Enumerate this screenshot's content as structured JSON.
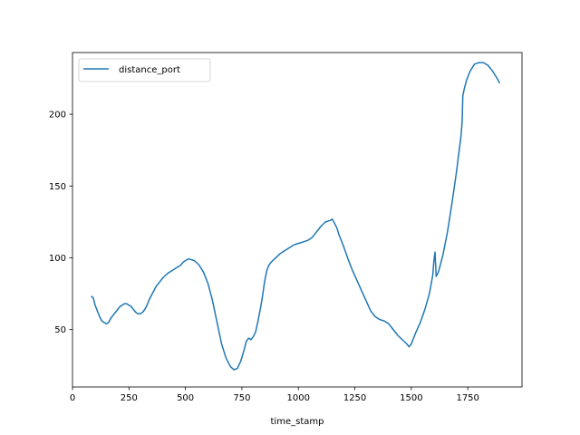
{
  "chart_data": {
    "type": "line",
    "title": "",
    "xlabel": "time_stamp",
    "ylabel": "",
    "xlim": [
      0,
      1990
    ],
    "ylim": [
      10,
      243
    ],
    "xticks": [
      0,
      250,
      500,
      750,
      1000,
      1250,
      1500,
      1750
    ],
    "yticks": [
      50,
      100,
      150,
      200
    ],
    "grid": false,
    "legend_position": "top-left",
    "series": [
      {
        "name": "distance_port",
        "color": "#1f77b4",
        "points": [
          [
            85,
            73
          ],
          [
            92,
            72
          ],
          [
            100,
            67
          ],
          [
            110,
            63
          ],
          [
            120,
            59
          ],
          [
            130,
            56
          ],
          [
            140,
            55
          ],
          [
            150,
            54
          ],
          [
            160,
            55
          ],
          [
            170,
            58
          ],
          [
            180,
            60
          ],
          [
            190,
            62
          ],
          [
            200,
            64
          ],
          [
            210,
            66
          ],
          [
            220,
            67
          ],
          [
            230,
            68
          ],
          [
            240,
            68
          ],
          [
            250,
            67
          ],
          [
            260,
            66
          ],
          [
            270,
            64
          ],
          [
            280,
            62
          ],
          [
            290,
            61
          ],
          [
            300,
            61
          ],
          [
            310,
            62
          ],
          [
            320,
            64
          ],
          [
            330,
            67
          ],
          [
            340,
            71
          ],
          [
            350,
            74
          ],
          [
            360,
            77
          ],
          [
            370,
            80
          ],
          [
            380,
            82
          ],
          [
            390,
            84
          ],
          [
            400,
            86
          ],
          [
            420,
            89
          ],
          [
            440,
            91
          ],
          [
            460,
            93
          ],
          [
            480,
            95
          ],
          [
            490,
            97
          ],
          [
            500,
            98
          ],
          [
            510,
            99
          ],
          [
            520,
            99
          ],
          [
            540,
            98
          ],
          [
            560,
            95
          ],
          [
            580,
            90
          ],
          [
            600,
            82
          ],
          [
            620,
            70
          ],
          [
            640,
            55
          ],
          [
            660,
            40
          ],
          [
            680,
            30
          ],
          [
            700,
            24
          ],
          [
            715,
            22
          ],
          [
            730,
            23
          ],
          [
            745,
            28
          ],
          [
            760,
            36
          ],
          [
            770,
            42
          ],
          [
            780,
            44
          ],
          [
            790,
            43
          ],
          [
            800,
            45
          ],
          [
            810,
            48
          ],
          [
            820,
            55
          ],
          [
            830,
            63
          ],
          [
            840,
            72
          ],
          [
            850,
            83
          ],
          [
            860,
            91
          ],
          [
            870,
            95
          ],
          [
            880,
            97
          ],
          [
            900,
            100
          ],
          [
            920,
            103
          ],
          [
            940,
            105
          ],
          [
            960,
            107
          ],
          [
            980,
            109
          ],
          [
            1000,
            110
          ],
          [
            1020,
            111
          ],
          [
            1040,
            112
          ],
          [
            1060,
            114
          ],
          [
            1080,
            118
          ],
          [
            1100,
            122
          ],
          [
            1120,
            125
          ],
          [
            1140,
            126
          ],
          [
            1150,
            127
          ],
          [
            1160,
            124
          ],
          [
            1170,
            121
          ],
          [
            1180,
            116
          ],
          [
            1200,
            108
          ],
          [
            1220,
            99
          ],
          [
            1240,
            91
          ],
          [
            1260,
            84
          ],
          [
            1280,
            77
          ],
          [
            1300,
            70
          ],
          [
            1320,
            63
          ],
          [
            1340,
            59
          ],
          [
            1360,
            57
          ],
          [
            1380,
            56
          ],
          [
            1400,
            54
          ],
          [
            1420,
            50
          ],
          [
            1440,
            46
          ],
          [
            1460,
            43
          ],
          [
            1480,
            40
          ],
          [
            1490,
            38
          ],
          [
            1500,
            40
          ],
          [
            1510,
            44
          ],
          [
            1520,
            48
          ],
          [
            1540,
            55
          ],
          [
            1560,
            64
          ],
          [
            1580,
            75
          ],
          [
            1595,
            88
          ],
          [
            1600,
            98
          ],
          [
            1605,
            104
          ],
          [
            1610,
            87
          ],
          [
            1620,
            90
          ],
          [
            1640,
            102
          ],
          [
            1660,
            118
          ],
          [
            1680,
            138
          ],
          [
            1700,
            160
          ],
          [
            1720,
            185
          ],
          [
            1725,
            195
          ],
          [
            1728,
            213
          ],
          [
            1735,
            218
          ],
          [
            1745,
            224
          ],
          [
            1760,
            230
          ],
          [
            1780,
            235
          ],
          [
            1800,
            236
          ],
          [
            1820,
            236
          ],
          [
            1840,
            234
          ],
          [
            1860,
            230
          ],
          [
            1880,
            225
          ],
          [
            1890,
            222
          ]
        ]
      }
    ]
  }
}
